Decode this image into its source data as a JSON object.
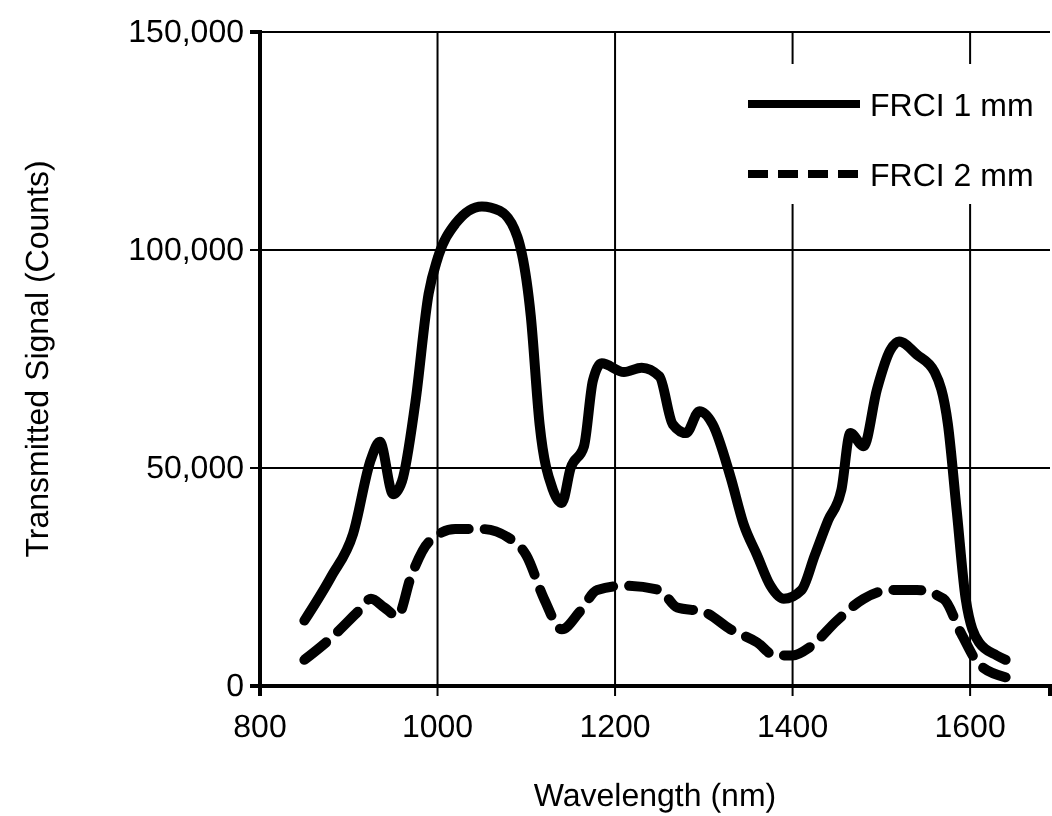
{
  "chart_data": {
    "type": "line",
    "xlabel": "Wavelength (nm)",
    "ylabel": "Transmitted Signal (Counts)",
    "xlim": [
      800,
      1690
    ],
    "xticks": [
      800,
      1000,
      1200,
      1400,
      1600
    ],
    "ylim": [
      0,
      150000
    ],
    "yticks": [
      0,
      {
        "value": 50000,
        "label": "50,000"
      },
      {
        "value": 100000,
        "label": "100,000"
      },
      {
        "value": 150000,
        "label": "150,000"
      }
    ],
    "grid": true,
    "legend": "top right",
    "marker": "none",
    "series": [
      {
        "name": "FRCI 1 mm",
        "color": "#000000",
        "line_style": "solid",
        "x": [
          850,
          880,
          905,
          925,
          935,
          950,
          960,
          975,
          990,
          1000,
          1020,
          1050,
          1070,
          1090,
          1105,
          1115,
          1130,
          1140,
          1150,
          1165,
          1175,
          1185,
          1210,
          1230,
          1250,
          1265,
          1280,
          1295,
          1310,
          1330,
          1345,
          1360,
          1375,
          1390,
          1410,
          1425,
          1440,
          1455,
          1465,
          1480,
          1495,
          1510,
          1520,
          1540,
          1560,
          1575,
          1585,
          1595,
          1610,
          1630,
          1640
        ],
        "values": [
          15000,
          25000,
          35000,
          52000,
          56000,
          44000,
          47000,
          65000,
          90000,
          98000,
          106000,
          110000,
          109000,
          103000,
          85000,
          60000,
          45000,
          42000,
          50000,
          55000,
          70000,
          74000,
          72000,
          73000,
          71000,
          60000,
          58000,
          63000,
          60000,
          48000,
          37000,
          30000,
          23000,
          20000,
          22000,
          30000,
          38000,
          45000,
          58000,
          55000,
          68000,
          77000,
          79000,
          76000,
          72000,
          60000,
          40000,
          20000,
          10000,
          7000,
          6000
        ]
      },
      {
        "name": "FRCI 2 mm",
        "color": "#000000",
        "line_style": "dashed",
        "x": [
          850,
          880,
          910,
          925,
          940,
          955,
          970,
          990,
          1020,
          1050,
          1080,
          1100,
          1120,
          1140,
          1160,
          1180,
          1210,
          1250,
          1270,
          1300,
          1330,
          1360,
          1380,
          1400,
          1420,
          1450,
          1480,
          1510,
          1540,
          1570,
          1590,
          1610,
          1640
        ],
        "values": [
          6000,
          11000,
          17000,
          20000,
          18000,
          16000,
          25000,
          33000,
          36000,
          36000,
          34000,
          30000,
          20000,
          13000,
          17000,
          22000,
          23000,
          22000,
          18000,
          17000,
          13000,
          10000,
          7000,
          7000,
          9000,
          15000,
          20000,
          22000,
          22000,
          20000,
          12000,
          5000,
          2000
        ]
      }
    ]
  }
}
